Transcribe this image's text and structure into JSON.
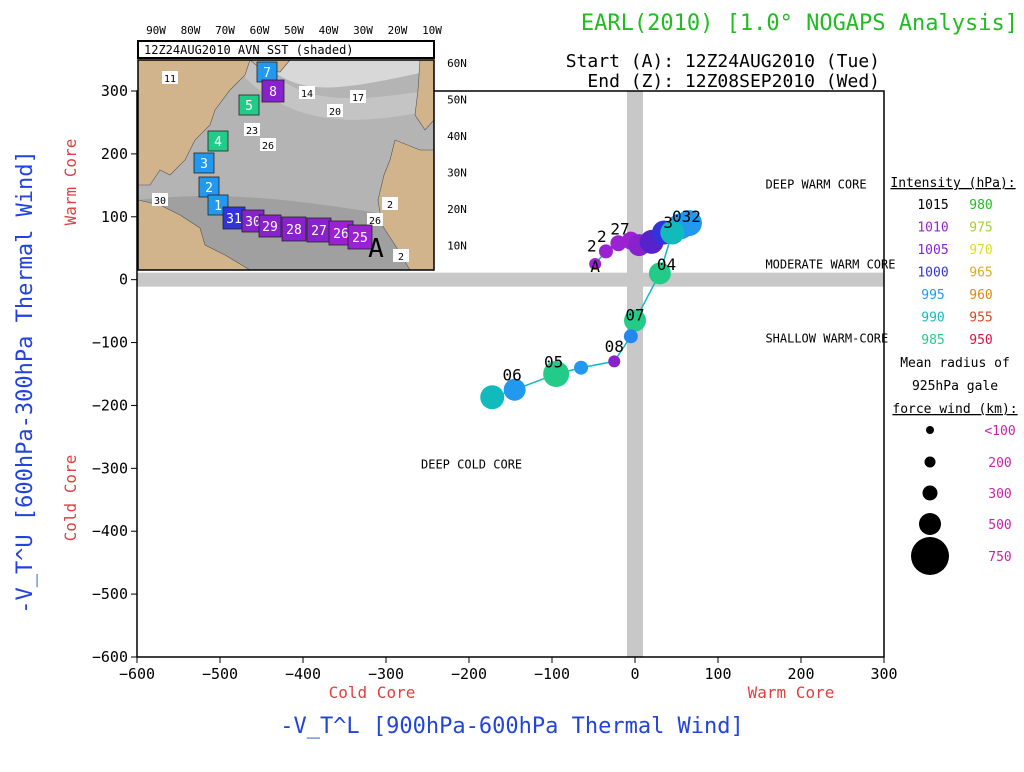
{
  "header": {
    "title": "EARL(2010) [1.0° NOGAPS Analysis]",
    "start": "Start (A): 12Z24AUG2010 (Tue)",
    "end": "End (Z): 12Z08SEP2010 (Wed)"
  },
  "colors": {
    "title": "#22bb22",
    "axis_title": "#2244dd",
    "core_label": "#e04040",
    "legend_radius_label": "#cc22aa",
    "quadrant_bar": "#c8c8c8",
    "land": "#d2b48c",
    "ocean_shades": [
      "#a0a0a0",
      "#b4b4b4",
      "#c4c4c4",
      "#d8d8d8"
    ]
  },
  "chart_data": {
    "type": "scatter",
    "title": "EARL(2010) [1.0° NOGAPS Analysis]",
    "xlabel": "-V_T^L [900hPa-600hPa Thermal Wind]",
    "ylabel": "-V_T^U [600hPa-300hPa Thermal Wind]",
    "xlim": [
      -600,
      300
    ],
    "ylim": [
      -600,
      300
    ],
    "xticks": [
      -600,
      -500,
      -400,
      -300,
      -200,
      -100,
      0,
      100,
      200,
      300
    ],
    "yticks": [
      -600,
      -500,
      -400,
      -300,
      -200,
      -100,
      0,
      100,
      200,
      300
    ],
    "x_side_labels": {
      "left": "Cold Core",
      "right": "Warm Core"
    },
    "y_side_labels": {
      "bottom": "Cold Core",
      "top": "Warm Core"
    },
    "regions": [
      {
        "label": "DEEP WARM CORE",
        "x": 115,
        "y": 145
      },
      {
        "label": "MODERATE WARM CORE",
        "x": 115,
        "y": 18
      },
      {
        "label": "SHALLOW WARM-CORE",
        "x": 115,
        "y": -100
      },
      {
        "label": "DEEP COLD CORE",
        "x": -300,
        "y": -300
      }
    ],
    "track": [
      {
        "x": -48,
        "y": 25,
        "size": 12,
        "color": "#9b22d2"
      },
      {
        "x": -35,
        "y": 45,
        "size": 14,
        "color": "#9b22d2"
      },
      {
        "x": -20,
        "y": 58,
        "size": 16,
        "color": "#9b22d2"
      },
      {
        "x": -5,
        "y": 62,
        "size": 18,
        "color": "#9b22d2"
      },
      {
        "x": 5,
        "y": 55,
        "size": 22,
        "color": "#8822cc"
      },
      {
        "x": 20,
        "y": 60,
        "size": 24,
        "color": "#5522cc"
      },
      {
        "x": 35,
        "y": 75,
        "size": 24,
        "color": "#3333dd"
      },
      {
        "x": 55,
        "y": 85,
        "size": 26,
        "color": "#2299ee"
      },
      {
        "x": 65,
        "y": 90,
        "size": 26,
        "color": "#2299ee"
      },
      {
        "x": 45,
        "y": 75,
        "size": 24,
        "color": "#11bbbb"
      },
      {
        "x": 30,
        "y": 10,
        "size": 22,
        "color": "#22cc88"
      },
      {
        "x": 0,
        "y": -65,
        "size": 22,
        "color": "#22cc88"
      },
      {
        "x": -5,
        "y": -90,
        "size": 14,
        "color": "#2288ee"
      },
      {
        "x": -25,
        "y": -130,
        "size": 12,
        "color": "#8822cc"
      },
      {
        "x": -65,
        "y": -140,
        "size": 14,
        "color": "#2299ee"
      },
      {
        "x": -95,
        "y": -150,
        "size": 26,
        "color": "#22cc88"
      },
      {
        "x": -145,
        "y": -175,
        "size": 22,
        "color": "#2299ee"
      },
      {
        "x": -172,
        "y": -187,
        "size": 24,
        "color": "#11bbbb"
      }
    ],
    "point_labels": [
      {
        "text": "A",
        "x": -48,
        "y": 12
      },
      {
        "text": "2",
        "x": -52,
        "y": 45
      },
      {
        "text": "2",
        "x": -40,
        "y": 60
      },
      {
        "text": "27",
        "x": -18,
        "y": 72
      },
      {
        "text": "3",
        "x": 40,
        "y": 82
      },
      {
        "text": "032",
        "x": 62,
        "y": 92
      },
      {
        "text": "04",
        "x": 38,
        "y": 15
      },
      {
        "text": "07",
        "x": 0,
        "y": -65
      },
      {
        "text": "08",
        "x": -25,
        "y": -115
      },
      {
        "text": "05",
        "x": -98,
        "y": -140
      },
      {
        "text": "06",
        "x": -148,
        "y": -160
      }
    ],
    "legend": {
      "intensity_title": "Intensity (hPa):",
      "intensity": [
        {
          "left": "1015",
          "left_color": "#000000",
          "right": "980",
          "right_color": "#22bb22"
        },
        {
          "left": "1010",
          "left_color": "#9b22d2",
          "right": "975",
          "right_color": "#aacc33"
        },
        {
          "left": "1005",
          "left_color": "#8822cc",
          "right": "970",
          "right_color": "#dddd22"
        },
        {
          "left": "1000",
          "left_color": "#3333dd",
          "right": "965",
          "right_color": "#ddaa22"
        },
        {
          "left": "995",
          "left_color": "#2299ee",
          "right": "960",
          "right_color": "#dd8811"
        },
        {
          "left": "990",
          "left_color": "#11bbbb",
          "right": "955",
          "right_color": "#dd4422"
        },
        {
          "left": "985",
          "left_color": "#22cc88",
          "right": "950",
          "right_color": "#dd1144"
        }
      ],
      "radius_title_1": "Mean radius of",
      "radius_title_2": "925hPa gale",
      "radius_title_3": "force wind (km):",
      "radius": [
        {
          "label": "<100",
          "size": 8
        },
        {
          "label": "200",
          "size": 11
        },
        {
          "label": "300",
          "size": 15
        },
        {
          "label": "500",
          "size": 22
        },
        {
          "label": "750",
          "size": 38
        }
      ]
    },
    "inset_map": {
      "title": "12Z24AUG2010 AVN SST (shaded)",
      "lon_labels": [
        "90W",
        "80W",
        "70W",
        "60W",
        "50W",
        "40W",
        "30W",
        "20W",
        "10W"
      ],
      "lat_labels": [
        "60N",
        "50N",
        "40N",
        "30N",
        "20N",
        "10N"
      ],
      "sst_contours": [
        "14",
        "17",
        "20",
        "23",
        "26",
        "30",
        "11",
        "2",
        "26",
        "2"
      ],
      "boxes": [
        {
          "label": "7",
          "color": "#2299ee"
        },
        {
          "label": "8",
          "color": "#8822cc"
        },
        {
          "label": "5",
          "color": "#22cc88"
        },
        {
          "label": "4",
          "color": "#22cc88"
        },
        {
          "label": "3",
          "color": "#2299ee"
        },
        {
          "label": "2",
          "color": "#2299ee"
        },
        {
          "label": "1",
          "color": "#2299ee"
        },
        {
          "label": "31",
          "color": "#3333dd"
        },
        {
          "label": "30",
          "color": "#8822cc"
        },
        {
          "label": "29",
          "color": "#8822cc"
        },
        {
          "label": "28",
          "color": "#8822cc"
        },
        {
          "label": "27",
          "color": "#8822cc"
        },
        {
          "label": "26",
          "color": "#9b22d2"
        },
        {
          "label": "25",
          "color": "#9b22d2"
        }
      ],
      "start_marker": "A"
    }
  }
}
